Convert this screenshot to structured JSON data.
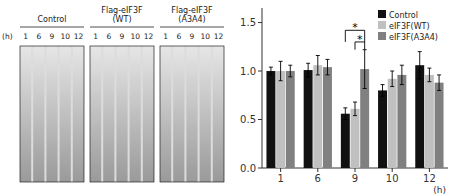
{
  "chart_data": [
    {
      "type": "gel",
      "groups": [
        "Control",
        "Flag-eIF3F\n(WT)",
        "Flag-eIF3F\n(A3A4)"
      ],
      "categories": [
        "1",
        "6",
        "9",
        "10",
        "12"
      ],
      "xlabel": "(h)"
    },
    {
      "type": "bar",
      "categories": [
        "1",
        "6",
        "9",
        "10",
        "12"
      ],
      "xlabel": "(h)",
      "ylim": [
        0,
        1.65
      ],
      "yticks": [
        {
          "value": 0.0,
          "label": "0.0"
        },
        0.5,
        {
          "value": 1.0,
          "label": "1.0"
        },
        1.5
      ],
      "series": [
        {
          "name": "Control",
          "color": "#111111",
          "values": [
            1.0,
            1.01,
            0.56,
            0.8,
            1.06
          ],
          "errors": [
            0.04,
            0.07,
            0.06,
            0.06,
            0.14
          ]
        },
        {
          "name": "eIF3F(WT)",
          "color": "#c0c0c0",
          "values": [
            1.0,
            1.06,
            0.61,
            0.92,
            0.96
          ],
          "errors": [
            0.1,
            0.1,
            0.07,
            0.08,
            0.07
          ]
        },
        {
          "name": "eIF3F(A3A4)",
          "color": "#808080",
          "values": [
            1.0,
            1.04,
            1.02,
            0.96,
            0.88
          ],
          "errors": [
            0.06,
            0.08,
            0.2,
            0.1,
            0.08
          ]
        }
      ],
      "annotations": [
        {
          "text": "*",
          "category": "9",
          "from": "Control",
          "to": "eIF3F(A3A4)",
          "y_low": 1.3,
          "y": 1.42
        },
        {
          "text": "*",
          "category": "9",
          "from": "eIF3F(WT)",
          "to": "eIF3F(A3A4)",
          "y_low": 1.22,
          "y": 1.3
        }
      ],
      "legend": "upper right",
      "grid": false
    }
  ]
}
